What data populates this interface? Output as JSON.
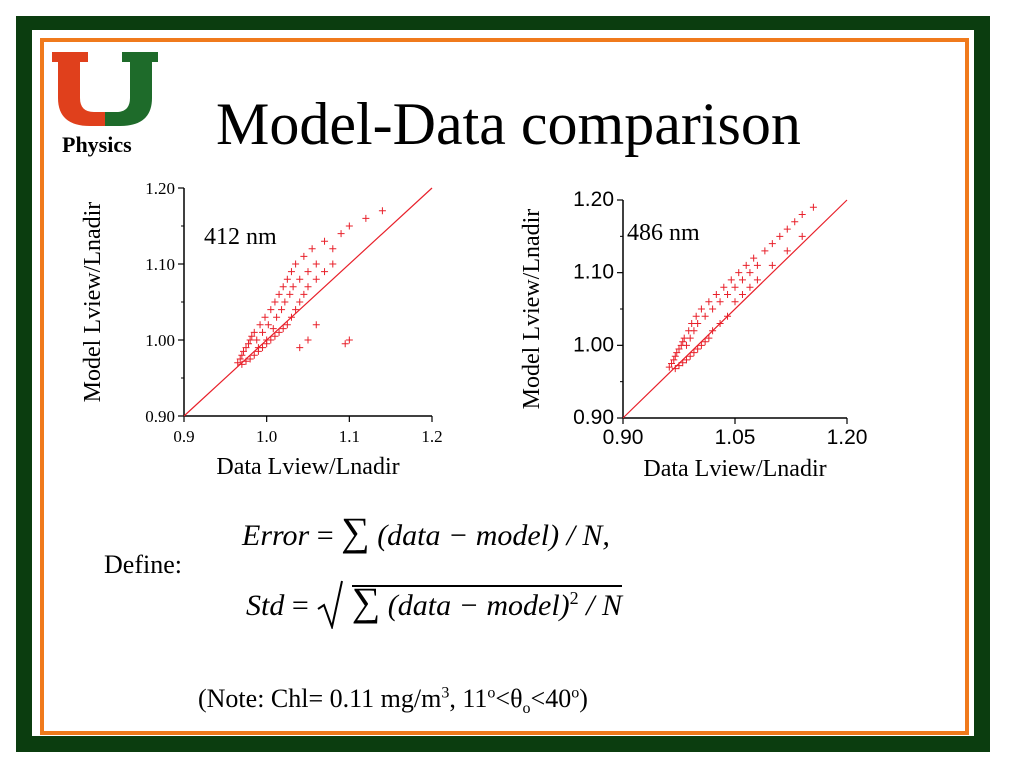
{
  "slide": {
    "title": "Model-Data comparison",
    "logo_text": "Physics",
    "define_label": "Define:",
    "error_formula": {
      "lhs": "Error",
      "eq": "=",
      "sum": "∑",
      "body": "(data − model) / N,"
    },
    "std_formula": {
      "lhs": "Std",
      "eq": "=",
      "sum": "∑",
      "body": "(data − model)",
      "power": "2",
      "tail": " / N"
    },
    "note": {
      "prefix": "(Note: Chl= 0.11 mg/m",
      "sup1": "3",
      "mid1": ", 11",
      "sup2": "o",
      "mid2": "<θ",
      "sub1": "o",
      "mid3": "<40",
      "sup3": "o",
      "suffix": ")"
    }
  },
  "colors": {
    "border_green": "#0b3d0f",
    "border_orange": "#f07a1c",
    "marker_red": "#e8202a",
    "line_red": "#e8202a",
    "logo_orange": "#e0401c",
    "logo_green": "#1e6b2a"
  },
  "chart_data": [
    {
      "type": "scatter",
      "annotation": "412 nm",
      "xlabel": "Data Lview/Lnadir",
      "ylabel": "Model Lview/Lnadir",
      "xlim": [
        0.9,
        1.2
      ],
      "ylim": [
        0.9,
        1.2
      ],
      "xticks": [
        0.9,
        1.0,
        1.1,
        1.2
      ],
      "xtick_labels": [
        "0.9",
        "1.0",
        "1.1",
        "1.2"
      ],
      "yticks": [
        0.9,
        1.0,
        1.1,
        1.2
      ],
      "ytick_labels": [
        "0.90",
        "1.00",
        "1.10",
        "1.20"
      ],
      "marker": "+",
      "reference_line": "y = x",
      "points": [
        [
          0.965,
          0.97
        ],
        [
          0.968,
          0.975
        ],
        [
          0.97,
          0.98
        ],
        [
          0.972,
          0.985
        ],
        [
          0.975,
          0.99
        ],
        [
          0.978,
          0.995
        ],
        [
          0.98,
          1.0
        ],
        [
          0.982,
          1.005
        ],
        [
          0.985,
          1.01
        ],
        [
          0.988,
          1.0
        ],
        [
          0.99,
          0.99
        ],
        [
          0.992,
          1.02
        ],
        [
          0.995,
          1.01
        ],
        [
          0.998,
          1.03
        ],
        [
          1.0,
          1.0
        ],
        [
          1.002,
          1.02
        ],
        [
          1.005,
          1.04
        ],
        [
          1.008,
          1.015
        ],
        [
          1.01,
          1.05
        ],
        [
          1.012,
          1.03
        ],
        [
          1.015,
          1.06
        ],
        [
          1.018,
          1.04
        ],
        [
          1.02,
          1.07
        ],
        [
          1.022,
          1.05
        ],
        [
          1.025,
          1.08
        ],
        [
          1.028,
          1.06
        ],
        [
          1.03,
          1.09
        ],
        [
          1.032,
          1.07
        ],
        [
          1.035,
          1.1
        ],
        [
          1.04,
          1.08
        ],
        [
          1.045,
          1.11
        ],
        [
          1.05,
          1.09
        ],
        [
          1.055,
          1.12
        ],
        [
          1.06,
          1.1
        ],
        [
          1.07,
          1.13
        ],
        [
          1.08,
          1.12
        ],
        [
          1.09,
          1.14
        ],
        [
          1.1,
          1.15
        ],
        [
          1.12,
          1.16
        ],
        [
          1.14,
          1.17
        ],
        [
          0.97,
          0.968
        ],
        [
          0.975,
          0.972
        ],
        [
          0.98,
          0.975
        ],
        [
          0.985,
          0.98
        ],
        [
          0.99,
          0.985
        ],
        [
          0.995,
          0.99
        ],
        [
          1.0,
          0.995
        ],
        [
          1.005,
          1.0
        ],
        [
          1.01,
          1.005
        ],
        [
          1.015,
          1.01
        ],
        [
          1.02,
          1.015
        ],
        [
          1.025,
          1.02
        ],
        [
          1.03,
          1.03
        ],
        [
          1.035,
          1.04
        ],
        [
          1.04,
          1.05
        ],
        [
          1.045,
          1.06
        ],
        [
          1.05,
          1.07
        ],
        [
          1.06,
          1.08
        ],
        [
          1.07,
          1.09
        ],
        [
          1.08,
          1.1
        ],
        [
          1.1,
          1.0
        ],
        [
          1.095,
          0.995
        ],
        [
          1.05,
          1.0
        ],
        [
          1.04,
          0.99
        ],
        [
          1.06,
          1.02
        ]
      ]
    },
    {
      "type": "scatter",
      "annotation": "486 nm",
      "xlabel": "Data Lview/Lnadir",
      "ylabel": "Model Lview/Lnadir",
      "xlim": [
        0.9,
        1.2
      ],
      "ylim": [
        0.9,
        1.2
      ],
      "xticks": [
        0.9,
        1.05,
        1.2
      ],
      "xtick_labels": [
        "0.90",
        "1.05",
        "1.20"
      ],
      "yticks": [
        0.9,
        1.0,
        1.1,
        1.2
      ],
      "ytick_labels": [
        "0.90",
        "1.00",
        "1.10",
        "1.20"
      ],
      "marker": "+",
      "reference_line": "y = x",
      "points": [
        [
          0.962,
          0.97
        ],
        [
          0.965,
          0.975
        ],
        [
          0.968,
          0.98
        ],
        [
          0.97,
          0.985
        ],
        [
          0.972,
          0.99
        ],
        [
          0.975,
          0.995
        ],
        [
          0.978,
          1.0
        ],
        [
          0.98,
          1.005
        ],
        [
          0.982,
          1.01
        ],
        [
          0.985,
          1.0
        ],
        [
          0.988,
          1.02
        ],
        [
          0.99,
          1.01
        ],
        [
          0.992,
          1.03
        ],
        [
          0.995,
          1.02
        ],
        [
          0.998,
          1.04
        ],
        [
          1.0,
          1.03
        ],
        [
          1.005,
          1.05
        ],
        [
          1.01,
          1.04
        ],
        [
          1.015,
          1.06
        ],
        [
          1.02,
          1.05
        ],
        [
          1.025,
          1.07
        ],
        [
          1.03,
          1.06
        ],
        [
          1.035,
          1.08
        ],
        [
          1.04,
          1.07
        ],
        [
          1.045,
          1.09
        ],
        [
          1.05,
          1.08
        ],
        [
          1.055,
          1.1
        ],
        [
          1.06,
          1.09
        ],
        [
          1.065,
          1.11
        ],
        [
          1.07,
          1.1
        ],
        [
          1.075,
          1.12
        ],
        [
          1.08,
          1.11
        ],
        [
          1.09,
          1.13
        ],
        [
          1.1,
          1.14
        ],
        [
          1.11,
          1.15
        ],
        [
          1.12,
          1.16
        ],
        [
          1.13,
          1.17
        ],
        [
          1.14,
          1.18
        ],
        [
          1.155,
          1.19
        ],
        [
          0.97,
          0.968
        ],
        [
          0.975,
          0.972
        ],
        [
          0.98,
          0.976
        ],
        [
          0.985,
          0.98
        ],
        [
          0.99,
          0.985
        ],
        [
          0.995,
          0.99
        ],
        [
          1.0,
          0.995
        ],
        [
          1.005,
          1.0
        ],
        [
          1.01,
          1.005
        ],
        [
          1.015,
          1.01
        ],
        [
          1.02,
          1.02
        ],
        [
          1.03,
          1.03
        ],
        [
          1.04,
          1.04
        ],
        [
          1.05,
          1.06
        ],
        [
          1.06,
          1.07
        ],
        [
          1.07,
          1.08
        ],
        [
          1.08,
          1.09
        ],
        [
          1.1,
          1.11
        ],
        [
          1.12,
          1.13
        ],
        [
          1.14,
          1.15
        ]
      ]
    }
  ]
}
